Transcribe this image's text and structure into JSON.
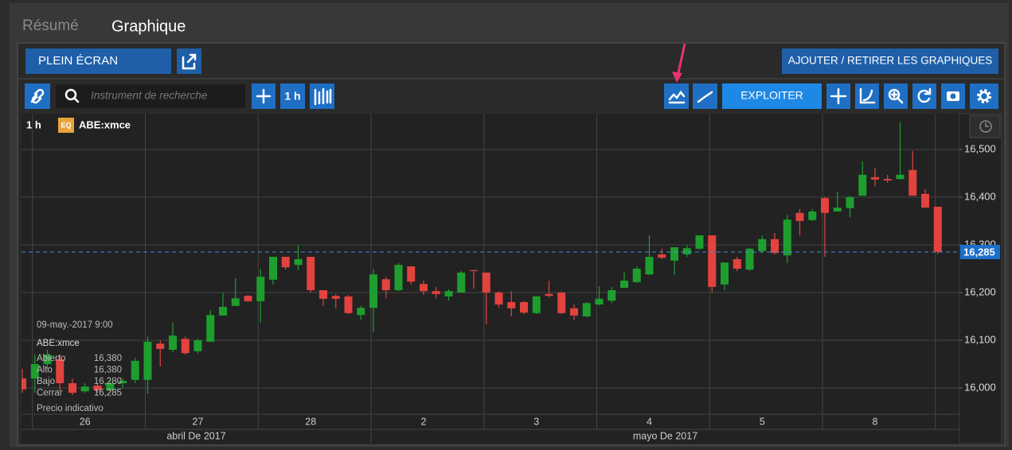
{
  "tabs": [
    "Résumé",
    "Graphique"
  ],
  "toolbar": {
    "fullscreen": "PLEIN ÉCRAN",
    "add_remove": "AJOUTER / RETIRER LES GRAPHIQUES",
    "search_placeholder": "Instrument de recherche",
    "interval_button": "1 h",
    "exploit": "EXPLOITER"
  },
  "chart_data": {
    "type": "candlestick",
    "interval": "1 h",
    "badge": "EQ",
    "instrument": "ABE:xmce",
    "categories": [
      null,
      null,
      null,
      null,
      null,
      "26",
      null,
      null,
      null,
      null,
      null,
      null,
      null,
      null,
      "27",
      null,
      null,
      null,
      null,
      null,
      null,
      null,
      null,
      "28",
      null,
      null,
      null,
      null,
      null,
      null,
      null,
      null,
      "2",
      null,
      null,
      null,
      null,
      null,
      null,
      null,
      null,
      "3",
      null,
      null,
      null,
      null,
      null,
      null,
      null,
      null,
      "4",
      null,
      null,
      null,
      null,
      null,
      null,
      null,
      null,
      "5",
      null,
      null,
      null,
      null,
      null,
      null,
      null,
      null,
      "8",
      null,
      null,
      null,
      null,
      null
    ],
    "months": [
      "abril De 2017",
      "mayo De 2017"
    ],
    "open": [
      16.02,
      16.02,
      16.05,
      16.06,
      16.01,
      15.993,
      16.005,
      15.995,
      16.01,
      16.017,
      16.017,
      16.093,
      16.08,
      16.103,
      16.077,
      16.097,
      16.152,
      16.172,
      16.193,
      16.182,
      16.227,
      16.275,
      16.258,
      16.275,
      16.205,
      16.193,
      16.192,
      16.153,
      16.168,
      16.228,
      16.205,
      16.255,
      16.218,
      16.203,
      16.192,
      16.2,
      16.247,
      16.242,
      16.2,
      16.18,
      16.18,
      16.157,
      16.197,
      16.2,
      16.167,
      16.15,
      16.175,
      16.183,
      16.21,
      16.222,
      16.238,
      16.28,
      16.267,
      16.28,
      16.292,
      16.32,
      16.217,
      16.27,
      16.248,
      16.287,
      16.312,
      16.278,
      16.367,
      16.352,
      16.398,
      16.37,
      16.377,
      16.403,
      16.442,
      16.438,
      16.438,
      16.457,
      16.407,
      16.38
    ],
    "high": [
      16.04,
      16.07,
      16.08,
      16.07,
      16.02,
      16.01,
      16.01,
      16.015,
      16.02,
      16.063,
      16.108,
      16.1,
      16.137,
      16.108,
      16.103,
      16.163,
      16.2,
      16.23,
      16.195,
      16.25,
      16.275,
      16.275,
      16.3,
      16.275,
      16.205,
      16.197,
      16.195,
      16.172,
      16.25,
      16.233,
      16.262,
      16.255,
      16.225,
      16.212,
      16.207,
      16.245,
      16.247,
      16.242,
      16.203,
      16.203,
      16.182,
      16.193,
      16.225,
      16.202,
      16.175,
      16.18,
      16.213,
      16.212,
      16.242,
      16.255,
      16.32,
      16.292,
      16.295,
      16.3,
      16.32,
      16.32,
      16.263,
      16.275,
      16.293,
      16.32,
      16.325,
      16.363,
      16.375,
      16.375,
      16.4,
      16.412,
      16.403,
      16.475,
      16.462,
      16.447,
      16.557,
      16.497,
      16.417,
      16.38
    ],
    "low": [
      15.99,
      15.99,
      16.04,
      15.995,
      15.985,
      15.99,
      15.99,
      15.99,
      16.0,
      16.01,
      15.988,
      16.045,
      16.075,
      16.07,
      16.072,
      16.097,
      16.152,
      16.172,
      16.18,
      16.137,
      16.217,
      16.248,
      16.247,
      16.2,
      16.172,
      16.167,
      16.155,
      16.142,
      16.117,
      16.188,
      16.203,
      16.217,
      16.195,
      16.188,
      16.183,
      16.2,
      16.208,
      16.133,
      16.168,
      16.15,
      16.155,
      16.155,
      16.19,
      16.155,
      16.142,
      16.148,
      16.173,
      16.178,
      16.21,
      16.22,
      16.237,
      16.27,
      16.237,
      16.275,
      16.29,
      16.2,
      16.205,
      16.245,
      16.245,
      16.283,
      16.28,
      16.262,
      16.32,
      16.35,
      16.275,
      16.37,
      16.358,
      16.403,
      16.423,
      16.43,
      16.437,
      16.403,
      16.378,
      16.28
    ],
    "close": [
      15.997,
      16.05,
      16.07,
      16.01,
      15.99,
      16.003,
      15.995,
      16.01,
      16.015,
      16.057,
      16.097,
      16.082,
      16.11,
      16.073,
      16.1,
      16.153,
      16.17,
      16.188,
      16.182,
      16.233,
      16.275,
      16.253,
      16.27,
      16.205,
      16.187,
      16.187,
      16.157,
      16.168,
      16.238,
      16.205,
      16.258,
      16.223,
      16.203,
      16.197,
      16.203,
      16.242,
      16.245,
      16.2,
      16.175,
      16.167,
      16.158,
      16.192,
      16.193,
      16.157,
      16.152,
      16.178,
      16.187,
      16.205,
      16.225,
      16.25,
      16.275,
      16.273,
      16.295,
      16.293,
      16.32,
      16.212,
      16.263,
      16.25,
      16.292,
      16.312,
      16.283,
      16.353,
      16.35,
      16.37,
      16.367,
      16.378,
      16.4,
      16.447,
      16.437,
      16.435,
      16.447,
      16.403,
      16.378,
      16.285
    ],
    "up_color": "#1e9e2e",
    "down_color": "#e2433e",
    "ylim": [
      15.945,
      16.575
    ],
    "yticks": [
      {
        "value": 16.0,
        "label": "16,000"
      },
      {
        "value": 16.1,
        "label": "16,100"
      },
      {
        "value": 16.2,
        "label": "16,200"
      },
      {
        "value": 16.3,
        "label": "16,300"
      },
      {
        "value": 16.4,
        "label": "16,400"
      },
      {
        "value": 16.5,
        "label": "16,500"
      }
    ],
    "grid": true,
    "last": {
      "value": 16.285,
      "label": "16,285"
    },
    "tooltip": {
      "time": "09-may.-2017 9:00",
      "instrument": "ABE:xmce",
      "rows": [
        {
          "label": "Abierto",
          "value": "16,380"
        },
        {
          "label": "Alto",
          "value": "16,380"
        },
        {
          "label": "Bajo",
          "value": "16,280"
        },
        {
          "label": "Cerrar",
          "value": "16,285"
        }
      ],
      "note": "Precio indicativo"
    }
  }
}
